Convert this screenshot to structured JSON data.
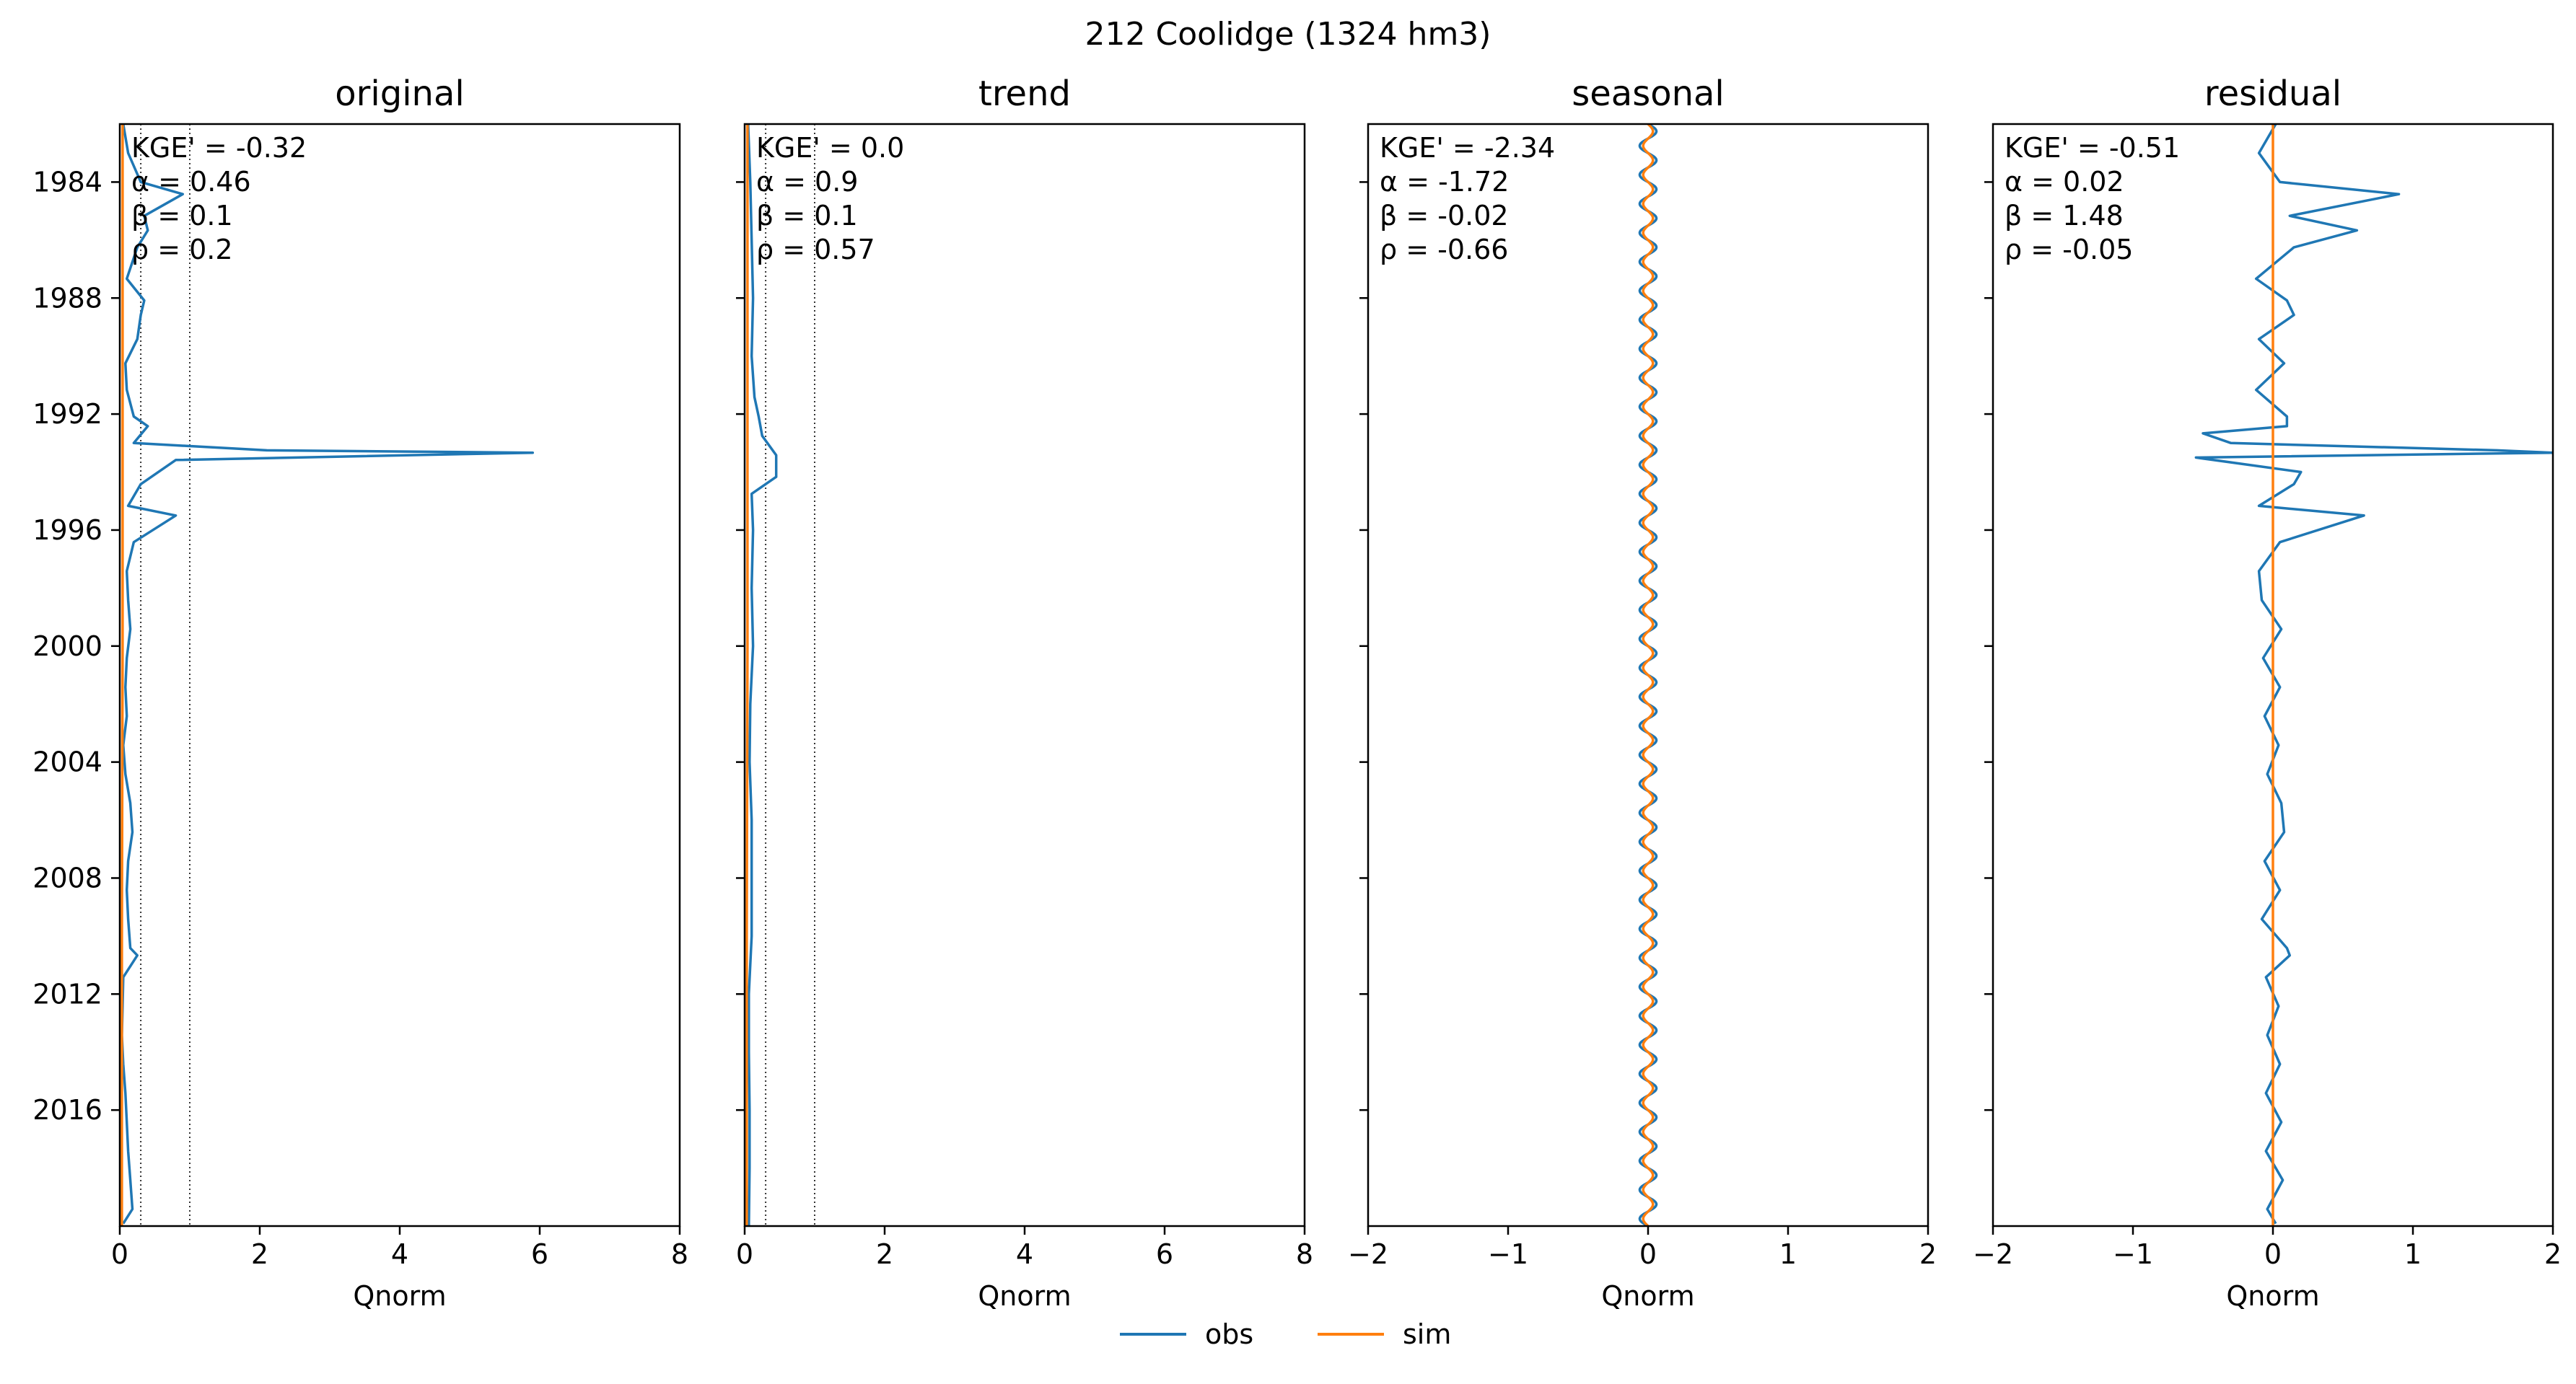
{
  "figure": {
    "suptitle": "212  Coolidge (1324 hm3)",
    "colors": {
      "obs": "#1f77b4",
      "sim": "#ff7f0e",
      "axis": "#000000",
      "ref_line": "#333333"
    },
    "legend": {
      "placement": "bottom-center",
      "items": [
        {
          "label": "obs",
          "color": "#1f77b4"
        },
        {
          "label": "sim",
          "color": "#ff7f0e"
        }
      ]
    }
  },
  "chart_data": [
    {
      "type": "line",
      "title": "original",
      "xlabel": "Qnorm",
      "ylabel": "",
      "orientation": "time on vertical axis (top = 1982), Qnorm on horizontal axis",
      "xlim": [
        0,
        8
      ],
      "xticks": [
        "0",
        "2",
        "4",
        "6",
        "8"
      ],
      "ylim": [
        "1982-01",
        "2020-01"
      ],
      "yticks": [
        "1984",
        "1988",
        "1992",
        "1996",
        "2000",
        "2004",
        "2008",
        "2012",
        "2016"
      ],
      "ref_lines_x": [
        0.3,
        1.0
      ],
      "stats": {
        "kge": "KGE' = -0.32",
        "alpha": "α = 0.46",
        "beta": "β = 0.1",
        "rho": "ρ = 0.2"
      },
      "series": [
        {
          "name": "obs",
          "x": [
            "1982-01",
            "1983-01",
            "1984-01",
            "1984-06",
            "1985-03",
            "1985-09",
            "1986-04",
            "1987-05",
            "1988-02",
            "1988-08",
            "1989-06",
            "1990-04",
            "1991-03",
            "1992-02",
            "1992-06",
            "1993-01",
            "1993-04",
            "1993-05",
            "1993-08",
            "1994-06",
            "1995-03",
            "1995-07",
            "1996-06",
            "1997-06",
            "1998-06",
            "1999-06",
            "2000-06",
            "2001-06",
            "2002-06",
            "2003-06",
            "2004-06",
            "2005-06",
            "2006-06",
            "2007-06",
            "2008-06",
            "2009-06",
            "2010-06",
            "2010-09",
            "2011-06",
            "2012-06",
            "2013-06",
            "2014-06",
            "2015-06",
            "2016-06",
            "2017-06",
            "2018-06",
            "2019-06",
            "2019-12"
          ],
          "y": [
            0.05,
            0.12,
            0.3,
            0.9,
            0.35,
            0.4,
            0.25,
            0.1,
            0.35,
            0.3,
            0.25,
            0.08,
            0.1,
            0.2,
            0.4,
            0.2,
            2.1,
            5.9,
            0.8,
            0.3,
            0.12,
            0.8,
            0.2,
            0.1,
            0.12,
            0.15,
            0.1,
            0.08,
            0.1,
            0.05,
            0.08,
            0.15,
            0.18,
            0.12,
            0.1,
            0.12,
            0.15,
            0.25,
            0.05,
            0.04,
            0.03,
            0.05,
            0.08,
            0.1,
            0.12,
            0.15,
            0.18,
            0.05
          ]
        },
        {
          "name": "sim",
          "x": [
            "1982-01",
            "1990-01",
            "2000-01",
            "2010-01",
            "2020-01"
          ],
          "y": [
            0.04,
            0.04,
            0.04,
            0.03,
            0.03
          ]
        }
      ]
    },
    {
      "type": "line",
      "title": "trend",
      "xlabel": "Qnorm",
      "ylabel": "",
      "orientation": "time on vertical axis (top = 1982), Qnorm on horizontal axis",
      "xlim": [
        0,
        8
      ],
      "xticks": [
        "0",
        "2",
        "4",
        "6",
        "8"
      ],
      "ylim": [
        "1982-01",
        "2020-01"
      ],
      "yticks": [
        "1984",
        "1988",
        "1992",
        "1996",
        "2000",
        "2004",
        "2008",
        "2012",
        "2016"
      ],
      "ref_lines_x": [
        0.3,
        1.0
      ],
      "stats": {
        "kge": "KGE' = 0.0",
        "alpha": "α = 0.9",
        "beta": "β = 0.1",
        "rho": "ρ = 0.57"
      },
      "series": [
        {
          "name": "obs",
          "x": [
            "1982-01",
            "1984-01",
            "1986-01",
            "1988-01",
            "1990-01",
            "1991-06",
            "1992-02",
            "1992-10",
            "1993-06",
            "1994-03",
            "1994-10",
            "1996-01",
            "1998-01",
            "2000-01",
            "2002-01",
            "2004-01",
            "2006-01",
            "2008-01",
            "2010-01",
            "2012-01",
            "2014-01",
            "2016-01",
            "2018-01",
            "2020-01"
          ],
          "y": [
            0.05,
            0.08,
            0.1,
            0.12,
            0.1,
            0.14,
            0.2,
            0.25,
            0.45,
            0.45,
            0.1,
            0.12,
            0.1,
            0.12,
            0.08,
            0.07,
            0.1,
            0.1,
            0.1,
            0.06,
            0.06,
            0.07,
            0.07,
            0.06
          ]
        },
        {
          "name": "sim",
          "x": [
            "1982-01",
            "1990-01",
            "2000-01",
            "2010-01",
            "2020-01"
          ],
          "y": [
            0.04,
            0.04,
            0.04,
            0.03,
            0.03
          ]
        }
      ]
    },
    {
      "type": "line",
      "title": "seasonal",
      "xlabel": "Qnorm",
      "ylabel": "",
      "orientation": "time on vertical axis (top = 1982), Qnorm on horizontal axis",
      "xlim": [
        -2,
        2
      ],
      "xticks": [
        "−2",
        "−1",
        "0",
        "1",
        "2"
      ],
      "ylim": [
        "1982-01",
        "2020-01"
      ],
      "yticks": [
        "1984",
        "1988",
        "1992",
        "1996",
        "2000",
        "2004",
        "2008",
        "2012",
        "2016"
      ],
      "ref_lines_x": [],
      "stats": {
        "kge": "KGE' = -2.34",
        "alpha": "α = -1.72",
        "beta": "β = -0.02",
        "rho": "ρ = -0.66"
      },
      "series": [
        {
          "name": "obs",
          "pattern": "annual oscillation",
          "amplitude": 0.06,
          "cycles_per_year": 1
        },
        {
          "name": "sim",
          "pattern": "annual oscillation",
          "amplitude": 0.035,
          "cycles_per_year": 1
        }
      ]
    },
    {
      "type": "line",
      "title": "residual",
      "xlabel": "Qnorm",
      "ylabel": "",
      "orientation": "time on vertical axis (top = 1982), Qnorm on horizontal axis",
      "xlim": [
        -2,
        2
      ],
      "xticks": [
        "−2",
        "−1",
        "0",
        "1",
        "2"
      ],
      "ylim": [
        "1982-01",
        "2020-01"
      ],
      "yticks": [
        "1984",
        "1988",
        "1992",
        "1996",
        "2000",
        "2004",
        "2008",
        "2012",
        "2016"
      ],
      "ref_lines_x": [],
      "stats": {
        "kge": "KGE' = -0.51",
        "alpha": "α = 0.02",
        "beta": "β = 1.48",
        "rho": "ρ = -0.05"
      },
      "series": [
        {
          "name": "obs",
          "x": [
            "1982-01",
            "1983-01",
            "1984-01",
            "1984-06",
            "1985-03",
            "1985-09",
            "1986-04",
            "1987-05",
            "1988-02",
            "1988-08",
            "1989-06",
            "1990-04",
            "1991-03",
            "1992-02",
            "1992-06",
            "1992-09",
            "1993-01",
            "1993-04",
            "1993-05",
            "1993-07",
            "1993-09",
            "1994-01",
            "1994-06",
            "1995-03",
            "1995-07",
            "1996-06",
            "1997-06",
            "1998-06",
            "1999-06",
            "2000-06",
            "2001-06",
            "2002-06",
            "2003-06",
            "2004-06",
            "2005-06",
            "2006-06",
            "2007-06",
            "2008-06",
            "2009-06",
            "2010-06",
            "2010-09",
            "2011-06",
            "2012-06",
            "2013-06",
            "2014-06",
            "2015-06",
            "2016-06",
            "2017-06",
            "2018-06",
            "2019-06",
            "2019-12"
          ],
          "y": [
            0.02,
            -0.1,
            0.05,
            0.9,
            0.12,
            0.6,
            0.15,
            -0.12,
            0.1,
            0.15,
            -0.1,
            0.08,
            -0.12,
            0.1,
            0.1,
            -0.5,
            -0.3,
            1.6,
            2.0,
            -0.55,
            -0.3,
            0.2,
            0.15,
            -0.1,
            0.65,
            0.05,
            -0.1,
            -0.08,
            0.06,
            -0.07,
            0.05,
            -0.06,
            0.04,
            -0.04,
            0.06,
            0.08,
            -0.06,
            0.05,
            -0.08,
            0.1,
            0.12,
            -0.05,
            0.04,
            -0.04,
            0.05,
            -0.05,
            0.06,
            -0.05,
            0.07,
            -0.04,
            0.02
          ]
        },
        {
          "name": "sim",
          "x": [
            "1982-01",
            "1990-01",
            "2000-01",
            "2010-01",
            "2020-01"
          ],
          "y": [
            0.0,
            0.0,
            0.0,
            0.0,
            0.0
          ]
        }
      ]
    }
  ]
}
